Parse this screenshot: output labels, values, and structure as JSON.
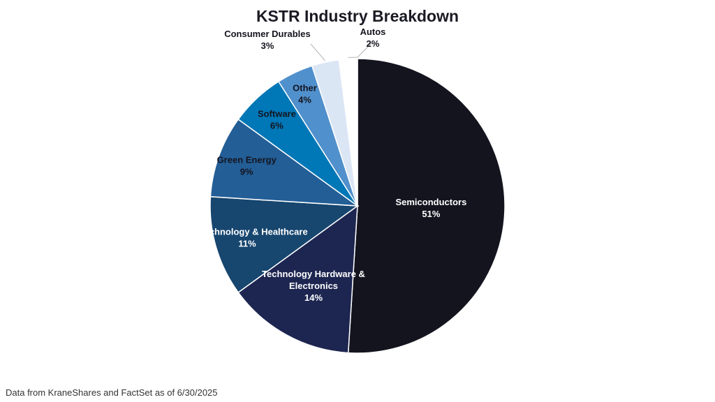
{
  "chart_data": {
    "type": "pie",
    "title": "KSTR Industry Breakdown",
    "categories": [
      "Semiconductors",
      "Technology Hardware & Electronics",
      "Biotechnology & Healthcare",
      "Green Energy",
      "Software",
      "Other",
      "Consumer Durables",
      "Autos"
    ],
    "values": [
      51,
      14,
      11,
      9,
      6,
      4,
      3,
      2
    ],
    "value_labels": [
      "51%",
      "14%",
      "11%",
      "9%",
      "6%",
      "4%",
      "3%",
      "2%"
    ],
    "colors": [
      "#14141f",
      "#1d2650",
      "#17466f",
      "#235e96",
      "#0077b6",
      "#5090cc",
      "#dbe6f5",
      "#ffffff"
    ],
    "label_colors": [
      "#ffffff",
      "#ffffff",
      "#ffffff",
      "#14141f",
      "#14141f",
      "#14141f",
      "#14141f",
      "#14141f"
    ],
    "label_placement": [
      "inside",
      "inside",
      "inside",
      "inside",
      "inside",
      "inside",
      "outside",
      "outside"
    ],
    "start_angle": "12 o'clock",
    "direction": "clockwise",
    "legend": "none"
  },
  "footnote": "Data from KraneShares and FactSet as of 6/30/2025"
}
